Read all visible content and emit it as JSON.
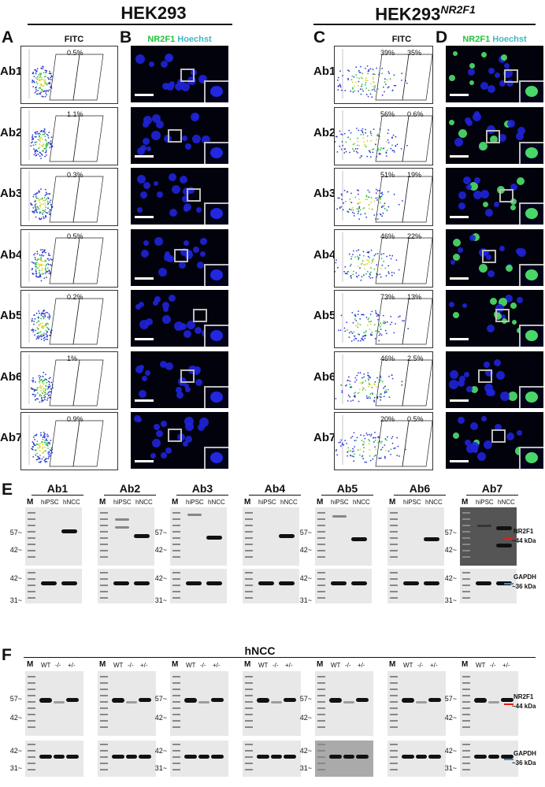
{
  "headers": {
    "left": "HEK293",
    "right_main": "HEK293",
    "right_sup": "NR2F1"
  },
  "panels": {
    "A": "A",
    "B": "B",
    "C": "C",
    "D": "D",
    "E": "E",
    "F": "F"
  },
  "sublabels": {
    "fitc": "FITC",
    "nr2f1": "NR2F1",
    "hoechst": "Hoechst"
  },
  "rows": [
    {
      "ab": "Ab1",
      "hek_pct": [
        "0.5%"
      ],
      "nr_pct": [
        "39%",
        "35%"
      ]
    },
    {
      "ab": "Ab2",
      "hek_pct": [
        "1.1%"
      ],
      "nr_pct": [
        "56%",
        "0.6%"
      ]
    },
    {
      "ab": "Ab3",
      "hek_pct": [
        "0.3%"
      ],
      "nr_pct": [
        "51%",
        "19%"
      ]
    },
    {
      "ab": "Ab4",
      "hek_pct": [
        "0.5%"
      ],
      "nr_pct": [
        "46%",
        "22%"
      ]
    },
    {
      "ab": "Ab5",
      "hek_pct": [
        "0.2%"
      ],
      "nr_pct": [
        "73%",
        "13%"
      ]
    },
    {
      "ab": "Ab6",
      "hek_pct": [
        "1%"
      ],
      "nr_pct": [
        "46%",
        "2.5%"
      ]
    },
    {
      "ab": "Ab7",
      "hek_pct": [
        "0.9%"
      ],
      "nr_pct": [
        "20%",
        "0.5%"
      ]
    }
  ],
  "blots_e": {
    "titles": [
      "Ab1",
      "Ab2",
      "Ab3",
      "Ab4",
      "Ab5",
      "Ab6",
      "Ab7"
    ],
    "lanes": [
      "M",
      "hiPSC",
      "hNCC"
    ],
    "mw_top": [
      "57~",
      "42~"
    ],
    "mw_bottom": [
      "42~",
      "31~"
    ],
    "nr2f1_label": "NR2F1",
    "nr2f1_kda": "~44 kDa",
    "gapdh_label": "GAPDH",
    "gapdh_kda": "~36 kDa"
  },
  "blots_f": {
    "title": "hNCC",
    "lanes": [
      "M",
      "WT",
      "-/-",
      "+/-"
    ]
  },
  "colors": {
    "nr2f1_arrow": "#e0201b",
    "gapdh_arrow": "#3a8fd6",
    "nr2f1_text": "#22c33a",
    "hoechst_text": "#3fb8c8"
  }
}
